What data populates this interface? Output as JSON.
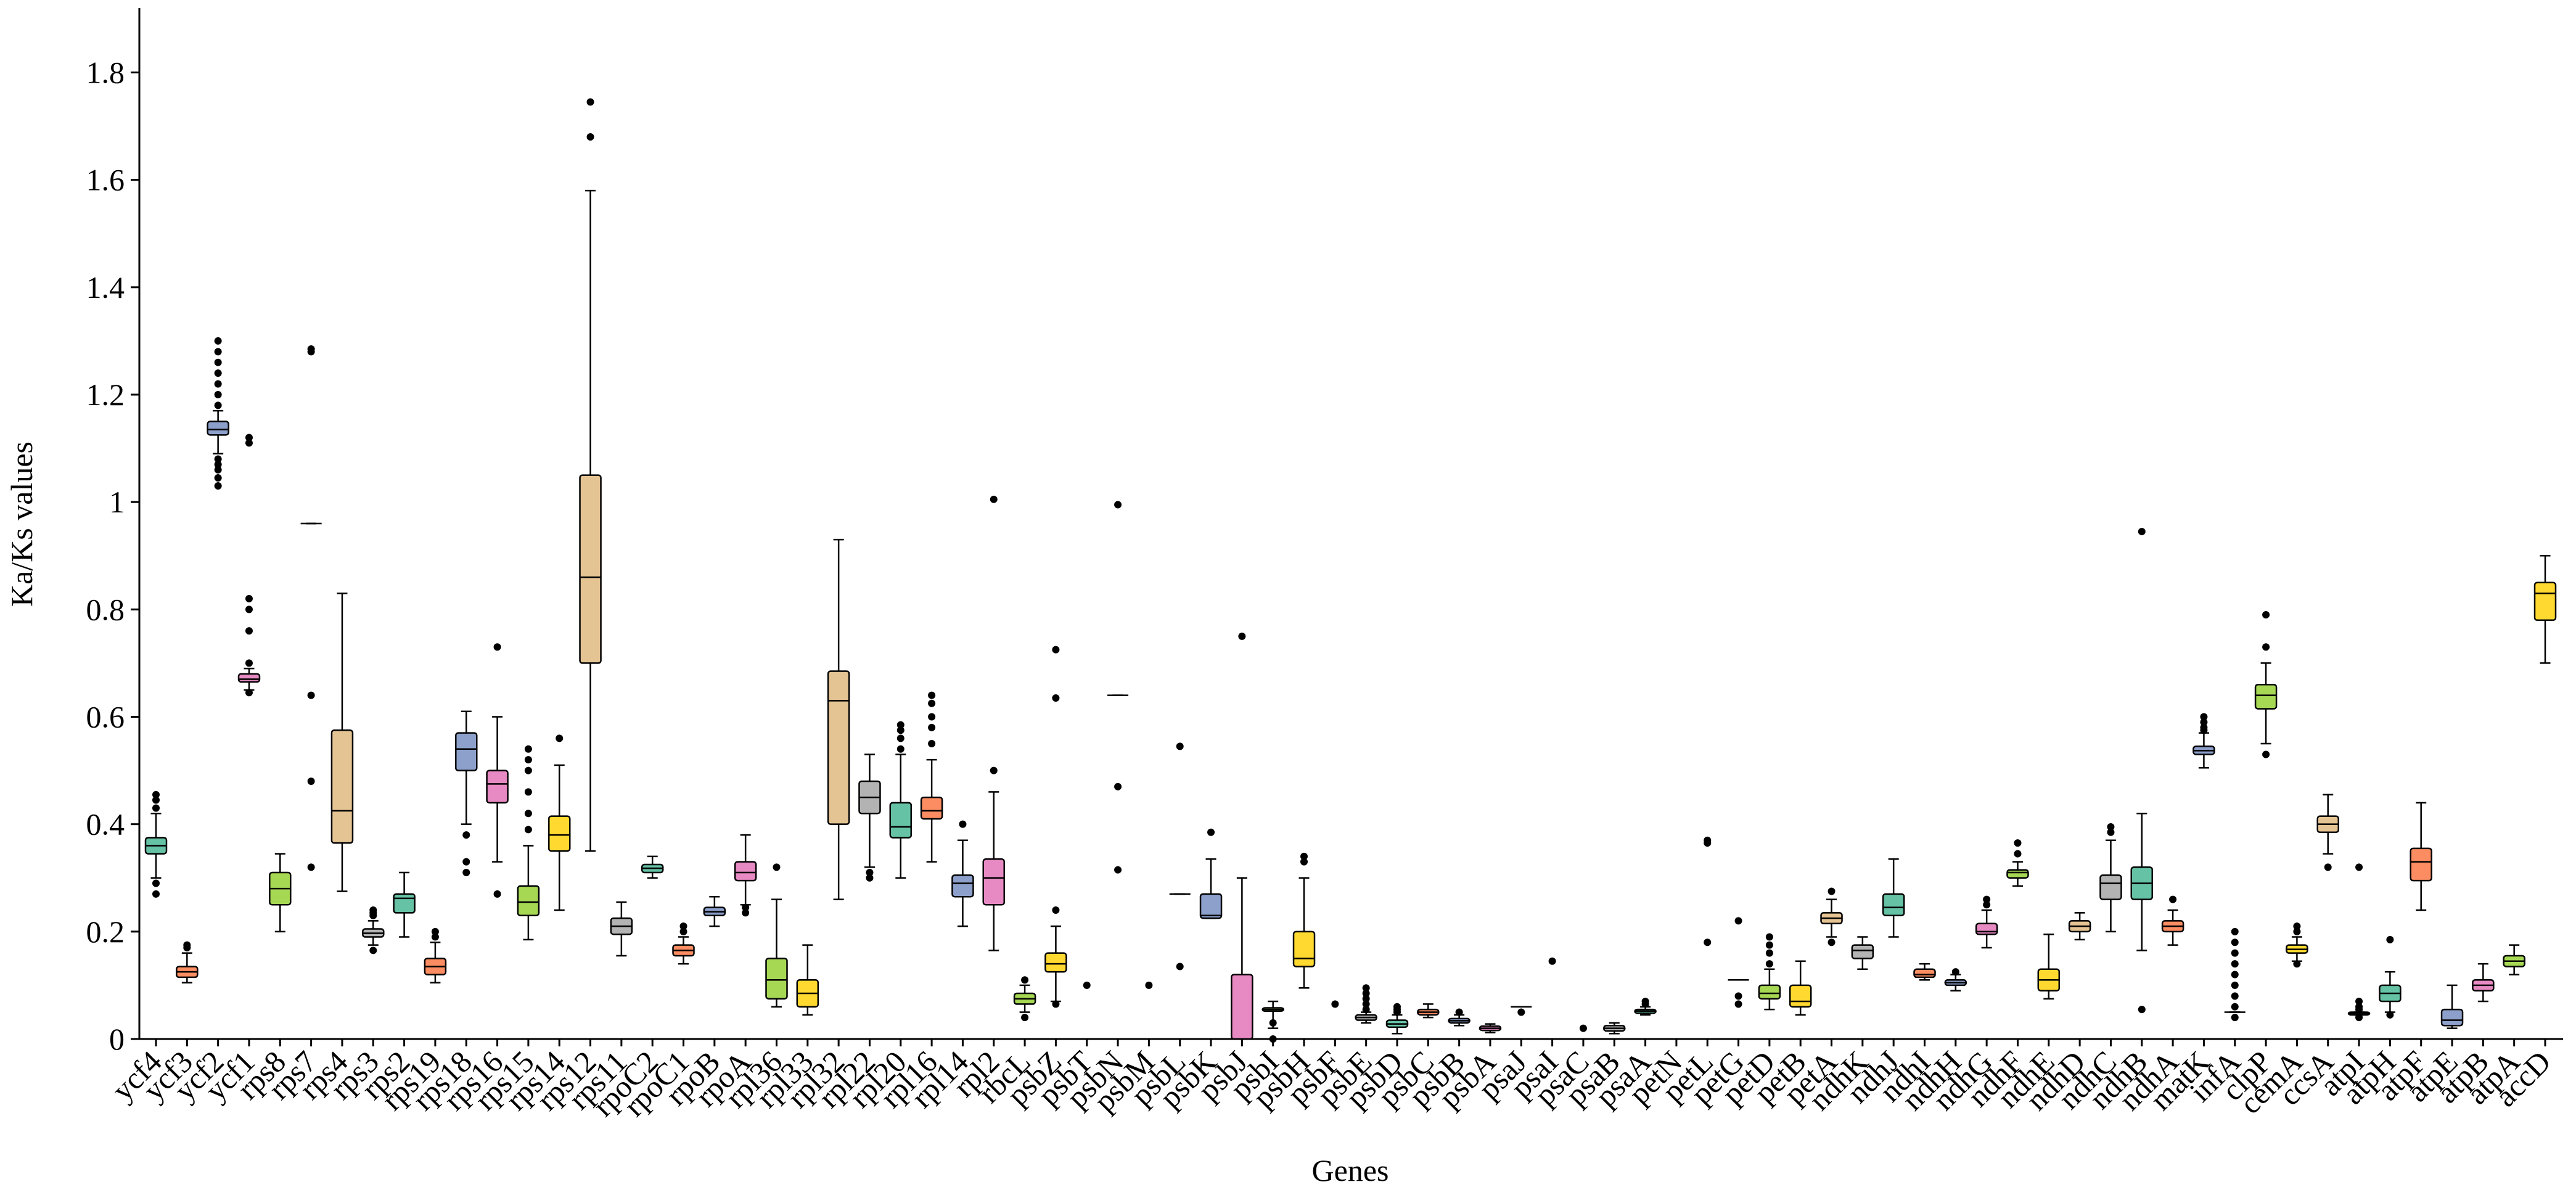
{
  "chart_data": {
    "type": "box",
    "x_label": "Genes",
    "y_label": "Ka/Ks values",
    "ylim": [
      0,
      1.92
    ],
    "yticks": [
      0,
      0.2,
      0.4,
      0.6,
      0.8,
      1,
      1.2,
      1.4,
      1.6,
      1.8
    ],
    "colors": [
      "#66c2a5",
      "#fc8d62",
      "#8da0cb",
      "#e78ac3",
      "#a6d854",
      "#ffd92f",
      "#e5c494",
      "#b3b3b3"
    ],
    "categories": [
      "ycf4",
      "ycf3",
      "ycf2",
      "ycf1",
      "rps8",
      "rps7",
      "rps4",
      "rps3",
      "rps2",
      "rps19",
      "rps18",
      "rps16",
      "rps15",
      "rps14",
      "rps12",
      "rps11",
      "rpoC2",
      "rpoC1",
      "rpoB",
      "rpoA",
      "rpl36",
      "rpl33",
      "rpl32",
      "rpl22",
      "rpl20",
      "rpl16",
      "rpl14",
      "rpl2",
      "rbcL",
      "psbZ",
      "psbT",
      "psbN",
      "psbM",
      "psbL",
      "psbK",
      "psbJ",
      "psbI",
      "psbH",
      "psbF",
      "psbE",
      "psbD",
      "psbC",
      "psbB",
      "psbA",
      "psaJ",
      "psaI",
      "psaC",
      "psaB",
      "psaA",
      "petN",
      "petL",
      "petG",
      "petD",
      "petB",
      "petA",
      "ndhK",
      "ndhJ",
      "ndhI",
      "ndhH",
      "ndhG",
      "ndhF",
      "ndhE",
      "ndhD",
      "ndhC",
      "ndhB",
      "ndhA",
      "matK",
      "infA",
      "clpP",
      "cemA",
      "ccsA",
      "atpI",
      "atpH",
      "atpF",
      "atpE",
      "atpB",
      "atpA",
      "accD"
    ],
    "boxes": [
      {
        "whislo": 0.3,
        "q1": 0.345,
        "med": 0.36,
        "q3": 0.375,
        "whishi": 0.42,
        "fliers": [
          0.27,
          0.29,
          0.43,
          0.445,
          0.455
        ]
      },
      {
        "whislo": 0.105,
        "q1": 0.115,
        "med": 0.125,
        "q3": 0.135,
        "whishi": 0.16,
        "fliers": [
          0.17,
          0.175
        ]
      },
      {
        "whislo": 1.09,
        "q1": 1.125,
        "med": 1.135,
        "q3": 1.15,
        "whishi": 1.17,
        "fliers": [
          1.03,
          1.045,
          1.06,
          1.07,
          1.08,
          1.18,
          1.2,
          1.22,
          1.24,
          1.26,
          1.28,
          1.3
        ]
      },
      {
        "whislo": 0.65,
        "q1": 0.665,
        "med": 0.67,
        "q3": 0.68,
        "whishi": 0.69,
        "fliers": [
          0.645,
          0.7,
          0.76,
          0.8,
          0.82,
          1.11,
          1.12
        ]
      },
      {
        "whislo": 0.2,
        "q1": 0.25,
        "med": 0.28,
        "q3": 0.31,
        "whishi": 0.345,
        "fliers": []
      },
      {
        "whislo": 0.96,
        "q1": 0.96,
        "med": 0.96,
        "q3": 0.96,
        "whishi": 0.96,
        "fliers": [
          0.32,
          0.48,
          0.64,
          1.28,
          1.285
        ]
      },
      {
        "whislo": 0.275,
        "q1": 0.365,
        "med": 0.425,
        "q3": 0.575,
        "whishi": 0.83,
        "fliers": []
      },
      {
        "whislo": 0.175,
        "q1": 0.19,
        "med": 0.197,
        "q3": 0.205,
        "whishi": 0.22,
        "fliers": [
          0.165,
          0.23,
          0.235,
          0.24
        ]
      },
      {
        "whislo": 0.19,
        "q1": 0.235,
        "med": 0.262,
        "q3": 0.27,
        "whishi": 0.31,
        "fliers": []
      },
      {
        "whislo": 0.105,
        "q1": 0.12,
        "med": 0.135,
        "q3": 0.15,
        "whishi": 0.18,
        "fliers": [
          0.19,
          0.2
        ]
      },
      {
        "whislo": 0.4,
        "q1": 0.5,
        "med": 0.54,
        "q3": 0.57,
        "whishi": 0.61,
        "fliers": [
          0.31,
          0.33,
          0.38
        ]
      },
      {
        "whislo": 0.33,
        "q1": 0.44,
        "med": 0.475,
        "q3": 0.5,
        "whishi": 0.6,
        "fliers": [
          0.27,
          0.73
        ]
      },
      {
        "whislo": 0.185,
        "q1": 0.23,
        "med": 0.255,
        "q3": 0.285,
        "whishi": 0.36,
        "fliers": [
          0.39,
          0.42,
          0.46,
          0.5,
          0.52,
          0.54
        ]
      },
      {
        "whislo": 0.24,
        "q1": 0.35,
        "med": 0.38,
        "q3": 0.415,
        "whishi": 0.51,
        "fliers": [
          0.56
        ]
      },
      {
        "whislo": 0.35,
        "q1": 0.7,
        "med": 0.86,
        "q3": 1.05,
        "whishi": 1.58,
        "fliers": [
          1.68,
          1.745
        ]
      },
      {
        "whislo": 0.155,
        "q1": 0.195,
        "med": 0.21,
        "q3": 0.225,
        "whishi": 0.255,
        "fliers": []
      },
      {
        "whislo": 0.3,
        "q1": 0.31,
        "med": 0.318,
        "q3": 0.325,
        "whishi": 0.34,
        "fliers": []
      },
      {
        "whislo": 0.14,
        "q1": 0.155,
        "med": 0.165,
        "q3": 0.175,
        "whishi": 0.19,
        "fliers": [
          0.2,
          0.21
        ]
      },
      {
        "whislo": 0.21,
        "q1": 0.23,
        "med": 0.237,
        "q3": 0.245,
        "whishi": 0.265,
        "fliers": []
      },
      {
        "whislo": 0.25,
        "q1": 0.295,
        "med": 0.31,
        "q3": 0.33,
        "whishi": 0.38,
        "fliers": [
          0.235,
          0.245
        ]
      },
      {
        "whislo": 0.06,
        "q1": 0.075,
        "med": 0.11,
        "q3": 0.15,
        "whishi": 0.26,
        "fliers": [
          0.32
        ]
      },
      {
        "whislo": 0.045,
        "q1": 0.06,
        "med": 0.085,
        "q3": 0.11,
        "whishi": 0.175,
        "fliers": []
      },
      {
        "whislo": 0.26,
        "q1": 0.4,
        "med": 0.63,
        "q3": 0.685,
        "whishi": 0.93,
        "fliers": []
      },
      {
        "whislo": 0.32,
        "q1": 0.42,
        "med": 0.45,
        "q3": 0.48,
        "whishi": 0.53,
        "fliers": [
          0.3,
          0.31
        ]
      },
      {
        "whislo": 0.3,
        "q1": 0.375,
        "med": 0.395,
        "q3": 0.44,
        "whishi": 0.53,
        "fliers": [
          0.54,
          0.56,
          0.575,
          0.585
        ]
      },
      {
        "whislo": 0.33,
        "q1": 0.41,
        "med": 0.425,
        "q3": 0.45,
        "whishi": 0.52,
        "fliers": [
          0.55,
          0.58,
          0.6,
          0.625,
          0.64
        ]
      },
      {
        "whislo": 0.21,
        "q1": 0.265,
        "med": 0.29,
        "q3": 0.305,
        "whishi": 0.37,
        "fliers": [
          0.4
        ]
      },
      {
        "whislo": 0.165,
        "q1": 0.25,
        "med": 0.3,
        "q3": 0.335,
        "whishi": 0.46,
        "fliers": [
          0.5,
          1.005
        ]
      },
      {
        "whislo": 0.05,
        "q1": 0.065,
        "med": 0.075,
        "q3": 0.085,
        "whishi": 0.1,
        "fliers": [
          0.04,
          0.11
        ]
      },
      {
        "whislo": 0.07,
        "q1": 0.125,
        "med": 0.14,
        "q3": 0.16,
        "whishi": 0.21,
        "fliers": [
          0.065,
          0.24,
          0.635,
          0.725
        ]
      },
      {
        "whislo": 0,
        "q1": 0,
        "med": 0,
        "q3": 0,
        "whishi": 0,
        "fliers": [
          0.1
        ]
      },
      {
        "whislo": 0.64,
        "q1": 0.64,
        "med": 0.64,
        "q3": 0.64,
        "whishi": 0.64,
        "fliers": [
          0.315,
          0.47,
          0.995
        ]
      },
      {
        "whislo": 0,
        "q1": 0,
        "med": 0,
        "q3": 0,
        "whishi": 0,
        "fliers": [
          0.1
        ]
      },
      {
        "whislo": 0.27,
        "q1": 0.27,
        "med": 0.27,
        "q3": 0.27,
        "whishi": 0.27,
        "fliers": [
          0.135,
          0.545
        ]
      },
      {
        "whislo": 0.225,
        "q1": 0.225,
        "med": 0.23,
        "q3": 0.27,
        "whishi": 0.335,
        "fliers": [
          0.385
        ]
      },
      {
        "whislo": 0,
        "q1": 0,
        "med": 0,
        "q3": 0.12,
        "whishi": 0.3,
        "fliers": [
          0.75
        ]
      },
      {
        "whislo": 0.02,
        "q1": 0.052,
        "med": 0.055,
        "q3": 0.058,
        "whishi": 0.07,
        "fliers": [
          0,
          0.03
        ]
      },
      {
        "whislo": 0.095,
        "q1": 0.135,
        "med": 0.15,
        "q3": 0.2,
        "whishi": 0.3,
        "fliers": [
          0.33,
          0.34
        ]
      },
      {
        "whislo": 0,
        "q1": 0,
        "med": 0,
        "q3": 0,
        "whishi": 0,
        "fliers": [
          0.065
        ]
      },
      {
        "whislo": 0.03,
        "q1": 0.035,
        "med": 0.04,
        "q3": 0.045,
        "whishi": 0.05,
        "fliers": [
          0.055,
          0.065,
          0.075,
          0.085,
          0.095
        ]
      },
      {
        "whislo": 0.01,
        "q1": 0.022,
        "med": 0.028,
        "q3": 0.035,
        "whishi": 0.045,
        "fliers": [
          0.05,
          0.055,
          0.06
        ]
      },
      {
        "whislo": 0.04,
        "q1": 0.045,
        "med": 0.05,
        "q3": 0.055,
        "whishi": 0.065,
        "fliers": []
      },
      {
        "whislo": 0.025,
        "q1": 0.03,
        "med": 0.034,
        "q3": 0.038,
        "whishi": 0.045,
        "fliers": [
          0.05
        ]
      },
      {
        "whislo": 0.012,
        "q1": 0.016,
        "med": 0.02,
        "q3": 0.024,
        "whishi": 0.028,
        "fliers": []
      },
      {
        "whislo": 0.06,
        "q1": 0.06,
        "med": 0.06,
        "q3": 0.06,
        "whishi": 0.06,
        "fliers": [
          0.05
        ]
      },
      {
        "whislo": 0,
        "q1": 0,
        "med": 0,
        "q3": 0,
        "whishi": 0,
        "fliers": [
          0.145
        ]
      },
      {
        "whislo": 0,
        "q1": 0,
        "med": 0,
        "q3": 0,
        "whishi": 0,
        "fliers": [
          0.02
        ]
      },
      {
        "whislo": 0.01,
        "q1": 0.015,
        "med": 0.02,
        "q3": 0.025,
        "whishi": 0.03,
        "fliers": []
      },
      {
        "whislo": 0.045,
        "q1": 0.048,
        "med": 0.052,
        "q3": 0.055,
        "whishi": 0.06,
        "fliers": [
          0.065,
          0.07
        ]
      },
      {
        "whislo": 0,
        "q1": 0,
        "med": 0,
        "q3": 0,
        "whishi": 0,
        "fliers": []
      },
      {
        "whislo": 0,
        "q1": 0,
        "med": 0,
        "q3": 0,
        "whishi": 0,
        "fliers": [
          0.18,
          0.365,
          0.37
        ]
      },
      {
        "whislo": 0.11,
        "q1": 0.11,
        "med": 0.11,
        "q3": 0.11,
        "whishi": 0.11,
        "fliers": [
          0.065,
          0.08,
          0.22
        ]
      },
      {
        "whislo": 0.055,
        "q1": 0.075,
        "med": 0.085,
        "q3": 0.1,
        "whishi": 0.13,
        "fliers": [
          0.14,
          0.16,
          0.175,
          0.19
        ]
      },
      {
        "whislo": 0.045,
        "q1": 0.06,
        "med": 0.07,
        "q3": 0.1,
        "whishi": 0.145,
        "fliers": []
      },
      {
        "whislo": 0.19,
        "q1": 0.215,
        "med": 0.225,
        "q3": 0.235,
        "whishi": 0.26,
        "fliers": [
          0.18,
          0.275
        ]
      },
      {
        "whislo": 0.13,
        "q1": 0.15,
        "med": 0.165,
        "q3": 0.175,
        "whishi": 0.19,
        "fliers": []
      },
      {
        "whislo": 0.19,
        "q1": 0.23,
        "med": 0.245,
        "q3": 0.27,
        "whishi": 0.335,
        "fliers": []
      },
      {
        "whislo": 0.11,
        "q1": 0.115,
        "med": 0.12,
        "q3": 0.13,
        "whishi": 0.14,
        "fliers": []
      },
      {
        "whislo": 0.09,
        "q1": 0.1,
        "med": 0.105,
        "q3": 0.11,
        "whishi": 0.12,
        "fliers": [
          0.125
        ]
      },
      {
        "whislo": 0.17,
        "q1": 0.195,
        "med": 0.2,
        "q3": 0.215,
        "whishi": 0.24,
        "fliers": [
          0.25,
          0.26
        ]
      },
      {
        "whislo": 0.285,
        "q1": 0.3,
        "med": 0.31,
        "q3": 0.315,
        "whishi": 0.33,
        "fliers": [
          0.345,
          0.365
        ]
      },
      {
        "whislo": 0.075,
        "q1": 0.09,
        "med": 0.11,
        "q3": 0.13,
        "whishi": 0.195,
        "fliers": []
      },
      {
        "whislo": 0.185,
        "q1": 0.2,
        "med": 0.21,
        "q3": 0.22,
        "whishi": 0.235,
        "fliers": []
      },
      {
        "whislo": 0.2,
        "q1": 0.26,
        "med": 0.29,
        "q3": 0.305,
        "whishi": 0.37,
        "fliers": [
          0.385,
          0.395
        ]
      },
      {
        "whislo": 0.165,
        "q1": 0.26,
        "med": 0.29,
        "q3": 0.32,
        "whishi": 0.42,
        "fliers": [
          0.055,
          0.945
        ]
      },
      {
        "whislo": 0.175,
        "q1": 0.2,
        "med": 0.21,
        "q3": 0.22,
        "whishi": 0.24,
        "fliers": [
          0.26
        ]
      },
      {
        "whislo": 0.505,
        "q1": 0.53,
        "med": 0.537,
        "q3": 0.545,
        "whishi": 0.57,
        "fliers": [
          0.575,
          0.58,
          0.59,
          0.6
        ]
      },
      {
        "whislo": 0.05,
        "q1": 0.05,
        "med": 0.05,
        "q3": 0.05,
        "whishi": 0.05,
        "fliers": [
          0.04,
          0.06,
          0.08,
          0.1,
          0.12,
          0.14,
          0.16,
          0.18,
          0.2
        ]
      },
      {
        "whislo": 0.55,
        "q1": 0.615,
        "med": 0.64,
        "q3": 0.66,
        "whishi": 0.7,
        "fliers": [
          0.53,
          0.73,
          0.79
        ]
      },
      {
        "whislo": 0.145,
        "q1": 0.16,
        "med": 0.167,
        "q3": 0.175,
        "whishi": 0.19,
        "fliers": [
          0.14,
          0.2,
          0.21
        ]
      },
      {
        "whislo": 0.345,
        "q1": 0.385,
        "med": 0.4,
        "q3": 0.415,
        "whishi": 0.455,
        "fliers": [
          0.32
        ]
      },
      {
        "whislo": 0.045,
        "q1": 0.045,
        "med": 0.048,
        "q3": 0.05,
        "whishi": 0.05,
        "fliers": [
          0.04,
          0.055,
          0.06,
          0.07,
          0.32
        ]
      },
      {
        "whislo": 0.05,
        "q1": 0.07,
        "med": 0.085,
        "q3": 0.1,
        "whishi": 0.125,
        "fliers": [
          0.045,
          0.185
        ]
      },
      {
        "whislo": 0.24,
        "q1": 0.295,
        "med": 0.33,
        "q3": 0.355,
        "whishi": 0.44,
        "fliers": []
      },
      {
        "whislo": 0.02,
        "q1": 0.025,
        "med": 0.035,
        "q3": 0.055,
        "whishi": 0.1,
        "fliers": []
      },
      {
        "whislo": 0.07,
        "q1": 0.09,
        "med": 0.1,
        "q3": 0.11,
        "whishi": 0.14,
        "fliers": []
      },
      {
        "whislo": 0.12,
        "q1": 0.135,
        "med": 0.145,
        "q3": 0.155,
        "whishi": 0.175,
        "fliers": []
      },
      {
        "whislo": 0.7,
        "q1": 0.78,
        "med": 0.83,
        "q3": 0.85,
        "whishi": 0.9,
        "fliers": []
      }
    ]
  }
}
